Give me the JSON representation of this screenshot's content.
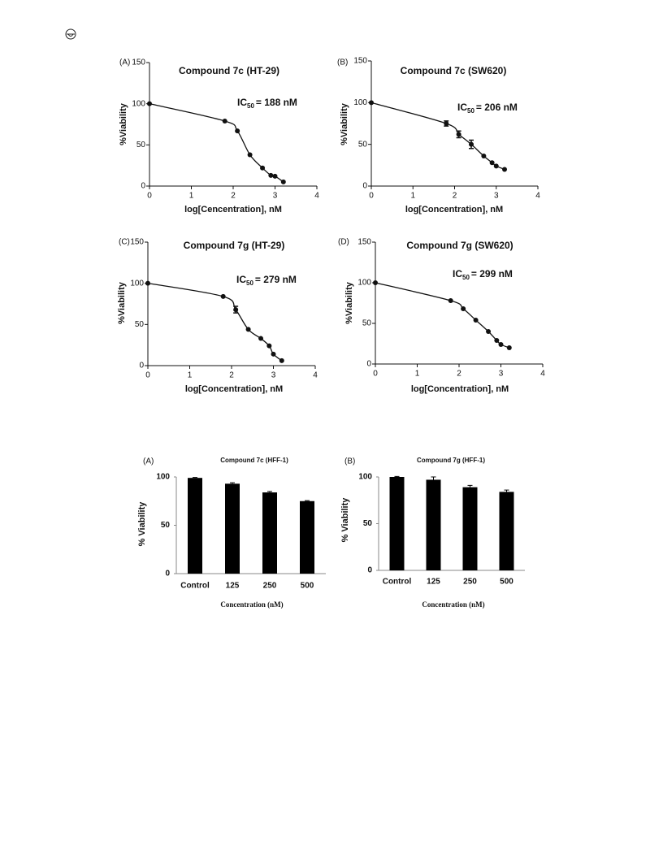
{
  "chart_data": [
    {
      "type": "dose",
      "panel": "(A)",
      "title": "Compound 7c (HT-29)",
      "xlabel": "log[Cencentration], nM",
      "ylabel": "%Viability",
      "ic_label": "IC",
      "ic_sub": "50",
      "ic_value": "= 188 nM",
      "x": [
        0,
        1.8,
        2.1,
        2.4,
        2.7,
        2.9,
        3.0,
        3.2
      ],
      "values": [
        100,
        79,
        67,
        38,
        22,
        13,
        12,
        5
      ],
      "errors": [
        null,
        null,
        null,
        null,
        null,
        null,
        null,
        null
      ],
      "xlim": [
        0,
        4
      ],
      "xticks": [
        0,
        1,
        2,
        3,
        4
      ],
      "ylim": [
        0,
        150
      ],
      "yticks": [
        0,
        50,
        100,
        150
      ],
      "color": "#111111"
    },
    {
      "type": "dose",
      "panel": "(B)",
      "title": "Compound 7c (SW620)",
      "xlabel": "log[Concentration], nM",
      "ylabel": "%Viability",
      "ic_label": "IC",
      "ic_sub": "50",
      "ic_value": "= 206 nM",
      "x": [
        0,
        1.8,
        2.1,
        2.4,
        2.7,
        2.9,
        3.0,
        3.2
      ],
      "values": [
        100,
        75,
        62,
        50,
        36,
        28,
        24,
        20
      ],
      "errors": [
        null,
        3,
        4,
        5,
        null,
        null,
        null,
        null
      ],
      "xlim": [
        0,
        4
      ],
      "xticks": [
        0,
        1,
        2,
        3,
        4
      ],
      "ylim": [
        0,
        150
      ],
      "yticks": [
        0,
        50,
        100,
        150
      ],
      "color": "#111111"
    },
    {
      "type": "dose",
      "panel": "(C)",
      "title": "Compound 7g (HT-29)",
      "xlabel": "log[Concentration], nM",
      "ylabel": "%Viability",
      "ic_label": "IC",
      "ic_sub": "50",
      "ic_value": "= 279 nM",
      "x": [
        0,
        1.8,
        2.1,
        2.4,
        2.7,
        2.9,
        3.0,
        3.2
      ],
      "values": [
        100,
        84,
        68,
        44,
        33,
        24,
        14,
        6
      ],
      "errors": [
        null,
        null,
        4,
        null,
        null,
        null,
        null,
        null
      ],
      "xlim": [
        0,
        4
      ],
      "xticks": [
        0,
        1,
        2,
        3,
        4
      ],
      "ylim": [
        0,
        150
      ],
      "yticks": [
        0,
        50,
        100,
        150
      ],
      "color": "#111111"
    },
    {
      "type": "dose",
      "panel": "(D)",
      "title": "Compound 7g (SW620)",
      "xlabel": "log[Concentration], nM",
      "ylabel": "%Viability",
      "ic_label": "IC",
      "ic_sub": "50",
      "ic_value": "= 299 nM",
      "x": [
        0,
        1.8,
        2.1,
        2.4,
        2.7,
        2.9,
        3.0,
        3.2
      ],
      "values": [
        100,
        78,
        68,
        54,
        40,
        29,
        24,
        20
      ],
      "errors": [
        null,
        null,
        null,
        null,
        null,
        null,
        null,
        null
      ],
      "xlim": [
        0,
        4
      ],
      "xticks": [
        0,
        1,
        2,
        3,
        4
      ],
      "ylim": [
        0,
        150
      ],
      "yticks": [
        0,
        50,
        100,
        150
      ],
      "color": "#111111"
    },
    {
      "type": "bar",
      "panel": "(A)",
      "title": "Compound 7c (HFF-1)",
      "xlabel": "Concentration (nM)",
      "ylabel": "% Viability",
      "categories": [
        "Control",
        "125",
        "250",
        "500"
      ],
      "values": [
        99,
        93,
        84,
        75
      ],
      "errors": [
        0.5,
        1,
        1,
        0.5
      ],
      "ylim": [
        0,
        100
      ],
      "yticks": [
        0,
        50,
        100
      ],
      "color": "#000000"
    },
    {
      "type": "bar",
      "panel": "(B)",
      "title": "Compound 7g (HFF-1)",
      "xlabel": "Concentration (nM)",
      "ylabel": "% Viability",
      "categories": [
        "Control",
        "125",
        "250",
        "500"
      ],
      "values": [
        100,
        97,
        89,
        84
      ],
      "errors": [
        0.5,
        3,
        2,
        2
      ],
      "ylim": [
        0,
        100
      ],
      "yticks": [
        0,
        50,
        100
      ],
      "color": "#000000"
    }
  ]
}
